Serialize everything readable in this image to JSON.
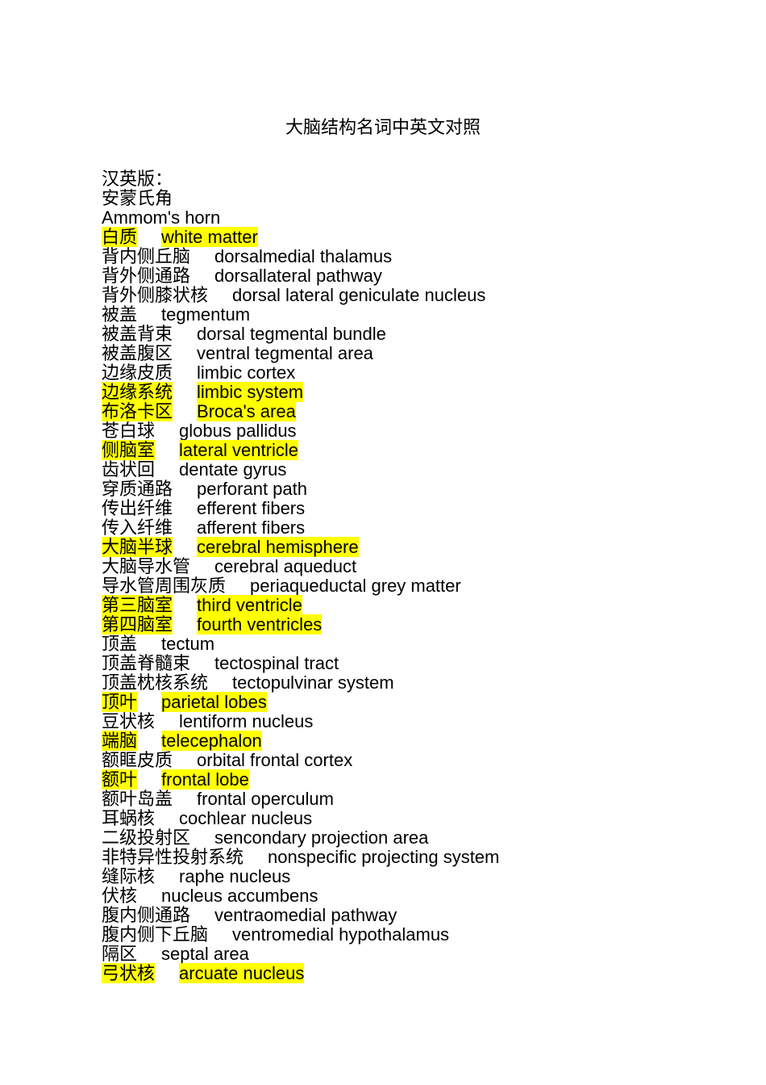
{
  "title": "大脑结构名词中英文对照",
  "intro_lines": [
    "汉英版：",
    "安蒙氏角",
    "Ammom's horn"
  ],
  "terms": [
    {
      "cn": "白质",
      "en": "white matter",
      "highlight": true
    },
    {
      "cn": "背内侧丘脑",
      "en": "dorsalmedial thalamus",
      "highlight": false
    },
    {
      "cn": "背外侧通路",
      "en": "dorsallateral pathway",
      "highlight": false
    },
    {
      "cn": "背外侧膝状核",
      "en": "dorsal lateral geniculate nucleus",
      "highlight": false
    },
    {
      "cn": "被盖",
      "en": "tegmentum",
      "highlight": false
    },
    {
      "cn": "被盖背束",
      "en": "dorsal tegmental bundle",
      "highlight": false
    },
    {
      "cn": "被盖腹区",
      "en": "ventral tegmental area",
      "highlight": false
    },
    {
      "cn": "边缘皮质",
      "en": "limbic cortex",
      "highlight": false
    },
    {
      "cn": "边缘系统",
      "en": "limbic system",
      "highlight": true
    },
    {
      "cn": "布洛卡区",
      "en": "Broca's area",
      "highlight": true
    },
    {
      "cn": "苍白球",
      "en": "globus pallidus",
      "highlight": false
    },
    {
      "cn": "侧脑室",
      "en": "lateral ventricle",
      "highlight": true
    },
    {
      "cn": "齿状回",
      "en": "dentate gyrus",
      "highlight": false
    },
    {
      "cn": "穿质通路",
      "en": "perforant path",
      "highlight": false
    },
    {
      "cn": "传出纤维",
      "en": "efferent fibers",
      "highlight": false
    },
    {
      "cn": "传入纤维",
      "en": "afferent fibers",
      "highlight": false
    },
    {
      "cn": "大脑半球",
      "en": "cerebral hemisphere",
      "highlight": true
    },
    {
      "cn": "大脑导水管",
      "en": "cerebral aqueduct",
      "highlight": false
    },
    {
      "cn": "导水管周围灰质",
      "en": "periaqueductal grey matter",
      "highlight": false
    },
    {
      "cn": "第三脑室",
      "en": "third ventricle",
      "highlight": true
    },
    {
      "cn": "第四脑室",
      "en": "fourth ventricles",
      "highlight": true
    },
    {
      "cn": "顶盖",
      "en": "tectum",
      "highlight": false
    },
    {
      "cn": "顶盖脊髓束",
      "en": "tectospinal tract",
      "highlight": false
    },
    {
      "cn": "顶盖枕核系统",
      "en": "tectopulvinar system",
      "highlight": false
    },
    {
      "cn": "顶叶",
      "en": "parietal lobes",
      "highlight": true
    },
    {
      "cn": "豆状核",
      "en": "lentiform nucleus",
      "highlight": false
    },
    {
      "cn": "端脑",
      "en": "telecephalon",
      "highlight": true
    },
    {
      "cn": "额眶皮质",
      "en": "orbital frontal cortex",
      "highlight": false
    },
    {
      "cn": "额叶",
      "en": "frontal lobe",
      "highlight": true
    },
    {
      "cn": "额叶岛盖",
      "en": "frontal operculum",
      "highlight": false
    },
    {
      "cn": "耳蜗核",
      "en": "cochlear nucleus",
      "highlight": false
    },
    {
      "cn": "二级投射区",
      "en": "sencondary projection area",
      "highlight": false
    },
    {
      "cn": "非特异性投射系统",
      "en": "nonspecific projecting system",
      "highlight": false
    },
    {
      "cn": "缝际核",
      "en": "raphe nucleus",
      "highlight": false
    },
    {
      "cn": "伏核",
      "en": "nucleus accumbens",
      "highlight": false
    },
    {
      "cn": "腹内侧通路",
      "en": "ventraomedial pathway",
      "highlight": false
    },
    {
      "cn": "腹内侧下丘脑",
      "en": "ventromedial hypothalamus",
      "highlight": false
    },
    {
      "cn": "隔区",
      "en": "septal area",
      "highlight": false
    },
    {
      "cn": "弓状核",
      "en": "arcuate nucleus",
      "highlight": true
    }
  ]
}
